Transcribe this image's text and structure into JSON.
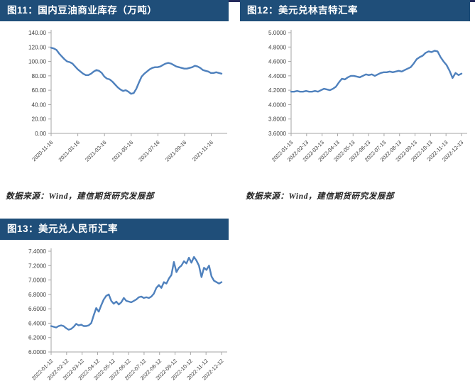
{
  "page": {
    "top_stripe_color": "#252a5c",
    "header_bg": "#1f4e79",
    "line_color": "#4f81bd",
    "axis_color": "#a6a6a6"
  },
  "figures": [
    {
      "id": "fig11",
      "title": "图11：国内豆油商业库存（万吨）",
      "source": "数据来源：Wind，建信期货研究发展部"
    },
    {
      "id": "fig12",
      "title": "图12：美元兑林吉特汇率",
      "source": "数据来源：Wind，建信期货研究发展部"
    },
    {
      "id": "fig13",
      "title": "图13：美元兑人民币汇率",
      "source": ""
    }
  ],
  "chart_data": [
    {
      "type": "line",
      "title": "国内豆油商业库存（万吨）",
      "xlabel": "",
      "ylabel": "",
      "ylim": [
        0,
        140
      ],
      "grid": false,
      "legend_position": "none",
      "y_ticks": [
        "140.00",
        "120.00",
        "100.00",
        "80.00",
        "60.00",
        "40.00",
        "20.00",
        "0.00"
      ],
      "x_labels": [
        "2020-11-16",
        "2021-01-16",
        "2021-03-16",
        "2021-05-16",
        "2021-07-16",
        "2021-09-16",
        "2021-11-16"
      ],
      "series": [
        {
          "name": "国内豆油商业库存",
          "values": [
            119,
            118,
            116,
            111,
            107,
            103,
            100,
            99,
            97,
            93,
            89,
            86,
            83,
            81,
            81,
            83,
            86,
            88,
            87,
            84,
            79,
            76,
            75,
            72,
            68,
            64,
            61,
            59,
            60,
            58,
            55,
            56,
            62,
            71,
            79,
            83,
            86,
            89,
            91,
            92,
            92,
            93,
            95,
            97,
            98,
            97,
            95,
            93,
            92,
            91,
            90,
            90,
            91,
            92,
            94,
            93,
            91,
            88,
            87,
            86,
            84,
            84,
            85,
            84,
            83
          ]
        }
      ]
    },
    {
      "type": "line",
      "title": "美元兑林吉特汇率",
      "xlabel": "",
      "ylabel": "",
      "ylim": [
        3.6,
        5.0
      ],
      "grid": false,
      "legend_position": "none",
      "y_ticks": [
        "5.0000",
        "4.8000",
        "4.6000",
        "4.4000",
        "4.2000",
        "4.0000",
        "3.8000",
        "3.6000"
      ],
      "x_labels": [
        "2022-01-13",
        "2022-02-13",
        "2022-03-13",
        "2022-04-13",
        "2022-05-13",
        "2022-06-13",
        "2022-07-13",
        "2022-08-13",
        "2022-09-13",
        "2022-10-13",
        "2022-11-13",
        "2022-12-13"
      ],
      "series": [
        {
          "name": "美元兑林吉特",
          "values": [
            4.18,
            4.18,
            4.19,
            4.18,
            4.18,
            4.19,
            4.18,
            4.18,
            4.19,
            4.18,
            4.2,
            4.22,
            4.21,
            4.2,
            4.22,
            4.25,
            4.31,
            4.36,
            4.35,
            4.38,
            4.4,
            4.4,
            4.39,
            4.38,
            4.4,
            4.42,
            4.41,
            4.42,
            4.4,
            4.42,
            4.44,
            4.45,
            4.45,
            4.46,
            4.45,
            4.46,
            4.47,
            4.46,
            4.48,
            4.5,
            4.52,
            4.57,
            4.63,
            4.66,
            4.68,
            4.72,
            4.74,
            4.73,
            4.75,
            4.74,
            4.66,
            4.6,
            4.55,
            4.47,
            4.37,
            4.44,
            4.41,
            4.43
          ]
        }
      ]
    },
    {
      "type": "line",
      "title": "美元兑人民币汇率",
      "xlabel": "",
      "ylabel": "",
      "ylim": [
        6.0,
        7.4
      ],
      "grid": false,
      "legend_position": "none",
      "y_ticks": [
        "7.4000",
        "7.2000",
        "7.0000",
        "6.8000",
        "6.6000",
        "6.4000",
        "6.2000",
        "6.0000"
      ],
      "x_labels": [
        "2022-01-12",
        "2022-02-12",
        "2022-03-12",
        "2022-04-12",
        "2022-05-12",
        "2022-06-12",
        "2022-07-12",
        "2022-08-12",
        "2022-09-12",
        "2022-10-12",
        "2022-11-12",
        "2022-12-12"
      ],
      "series": [
        {
          "name": "美元兑人民币",
          "values": [
            6.36,
            6.35,
            6.34,
            6.36,
            6.37,
            6.36,
            6.33,
            6.31,
            6.32,
            6.35,
            6.39,
            6.37,
            6.38,
            6.36,
            6.36,
            6.37,
            6.4,
            6.51,
            6.61,
            6.56,
            6.65,
            6.73,
            6.78,
            6.8,
            6.71,
            6.67,
            6.7,
            6.66,
            6.69,
            6.75,
            6.71,
            6.7,
            6.69,
            6.71,
            6.73,
            6.76,
            6.77,
            6.75,
            6.76,
            6.75,
            6.77,
            6.81,
            6.89,
            6.93,
            6.89,
            6.97,
            6.95,
            7.02,
            7.07,
            7.25,
            7.11,
            7.17,
            7.2,
            7.26,
            7.23,
            7.31,
            7.24,
            7.32,
            7.27,
            7.2,
            7.04,
            7.17,
            7.14,
            7.2,
            7.05,
            6.99,
            6.97,
            6.95,
            6.97
          ]
        }
      ]
    }
  ]
}
